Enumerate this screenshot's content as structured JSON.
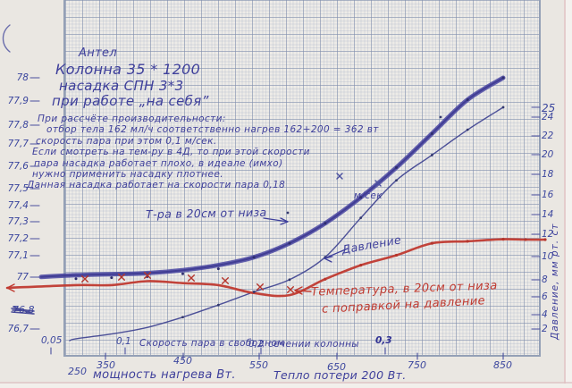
{
  "page": {
    "title_block": {
      "line1": "Антел",
      "line2": "Колонна 35 * 1200",
      "line3": "насадка СПН 3*3",
      "line4": "при работе „на себя”"
    },
    "notes": [
      "При рассчёте производительности:",
      "отбор тела 162 мл/ч соответственно  нагрев 162+200 = 362 вт",
      "скорость пара при этом 0,1 м/сек.",
      "Если смотреть на тем-ру в 4Д, то при этой скорости",
      "пара насадка работает плохо, в идеале (имхо)",
      "нужно применить насадку плотнее.",
      "Данная насадка работает на скорости пара 0,18",
      "м/сек"
    ],
    "curve_labels": {
      "temp": "Т-ра в 20см от низа",
      "pressure": "Давление",
      "temp_corrected_1": "Температура, в 20см от низа",
      "temp_corrected_2": "с поправкой на давление"
    }
  },
  "axes": {
    "left_ticks": [
      "78",
      "77,9",
      "77,8",
      "77,7",
      "77,6",
      "77,5",
      "77,4",
      "77,3",
      "77,2",
      "77,1",
      "77",
      "76,7"
    ],
    "left_crossed_out": "76,8",
    "right_ticks": [
      "25",
      "24",
      "22",
      "20",
      "18",
      "16",
      "14",
      "12",
      "10",
      "8",
      "6",
      "4",
      "2"
    ],
    "right_axis_title": "Давление,  мм рт. ст",
    "speed_ticks": [
      "0,05",
      "0,1",
      "0,2",
      "0,3"
    ],
    "speed_axis_label_left": "Скорость пара в свободном",
    "speed_axis_label_right": "сечении колонны",
    "power_ticks": [
      "250",
      "350",
      "450",
      "550",
      "650",
      "750",
      "850"
    ],
    "power_axis_label": "мощность нагрева Вт.",
    "power_axis_note": "Тепло потери 200 Вт."
  },
  "chart_data": {
    "type": "line",
    "x": [
      250,
      300,
      350,
      400,
      450,
      500,
      550,
      600,
      650,
      700,
      750,
      800,
      850
    ],
    "xlabel": "мощность нагрева, Вт",
    "xlabel_secondary": "скорость пара в свободном сечении колонны, м/сек",
    "speed_marks": {
      "0,05": 290,
      "0,1": 362,
      "0,2": 555,
      "0,3": 735
    },
    "ylabel_left": "температура в 20 см от низа, °C",
    "ylabel_right": "давление, мм рт. ст",
    "ylim_left": [
      76.7,
      78.05
    ],
    "ylim_right": [
      0,
      26
    ],
    "grid": true,
    "legend_position": "inline-annotations",
    "annotation": "Тепло потери 200 Вт",
    "series": [
      {
        "name": "Т-ра в 20 см от низа",
        "axis": "left",
        "color": "#4a46a2",
        "values": [
          77.01,
          77.015,
          77.02,
          77.035,
          77.06,
          77.1,
          77.17,
          77.27,
          77.4,
          77.55,
          77.72,
          77.89,
          78.0
        ]
      },
      {
        "name": "Давление",
        "axis": "right",
        "color": "#3b3f8f",
        "values": [
          0.3,
          0.8,
          1.5,
          2.6,
          3.9,
          5.3,
          6.6,
          9.0,
          13.2,
          17.2,
          19.9,
          22.6,
          25.0
        ]
      },
      {
        "name": "Температура в 20 см от низа с поправкой на давление",
        "axis": "left",
        "color": "#c03a30",
        "values": [
          76.96,
          76.96,
          76.98,
          76.97,
          76.96,
          76.92,
          76.91,
          76.99,
          77.06,
          77.11,
          77.17,
          77.18,
          77.19
        ]
      }
    ]
  }
}
